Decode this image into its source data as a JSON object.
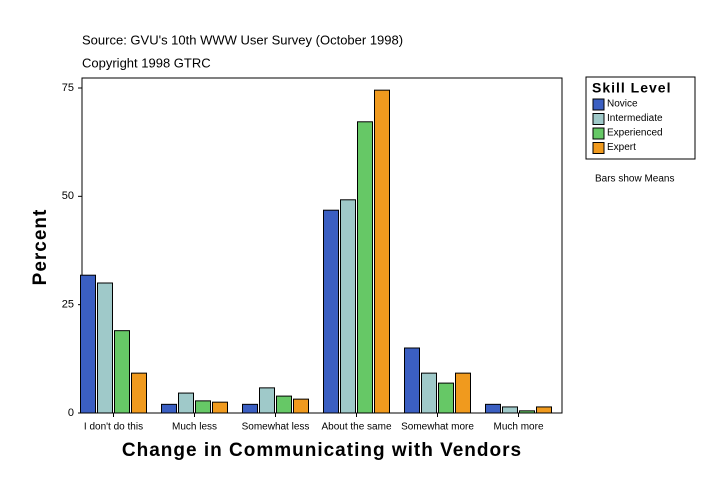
{
  "chart_data": {
    "type": "bar",
    "subtitle": "Source: GVU's 10th WWW User Survey (October 1998)",
    "copyright": "Copyright 1998 GTRC",
    "y_label": "Percent",
    "x_label": "Change in Communicating with Vendors",
    "legend_title": "Skill Level",
    "note": "Bars show Means",
    "categories": [
      "I don't do this",
      "Much less",
      "Somewhat less",
      "About the same",
      "Somewhat more",
      "Much more"
    ],
    "series": [
      {
        "name": "Novice",
        "color": "#3b5fc2",
        "values": [
          31.8,
          2,
          2,
          46.8,
          15,
          2
        ]
      },
      {
        "name": "Intermediate",
        "color": "#9fc9c9",
        "values": [
          30,
          4.6,
          5.8,
          49.2,
          9.2,
          1.4
        ]
      },
      {
        "name": "Experienced",
        "color": "#66c866",
        "values": [
          19,
          2.8,
          3.9,
          67.2,
          6.9,
          0.5
        ]
      },
      {
        "name": "Expert",
        "color": "#f09a1e",
        "values": [
          9.2,
          2.5,
          3.2,
          74.5,
          9.2,
          1.4
        ]
      }
    ],
    "ylim": [
      0,
      75
    ],
    "yticks": [
      0,
      25,
      50,
      75
    ]
  }
}
